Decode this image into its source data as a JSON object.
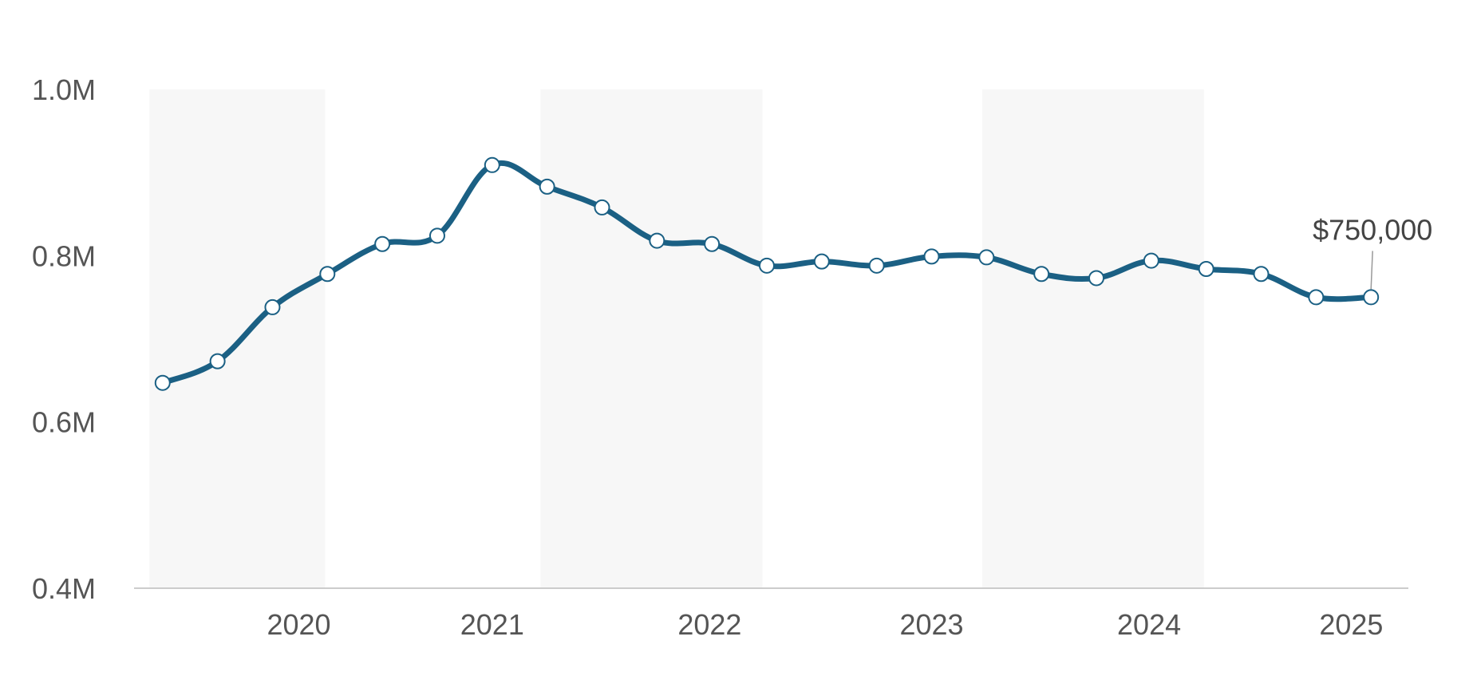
{
  "chart_data": {
    "type": "line",
    "title": "",
    "xlabel": "",
    "ylabel": "",
    "ylim": [
      400000,
      1000000
    ],
    "grid": false,
    "legend": "none",
    "y_ticks": [
      {
        "value": 400000,
        "label": "0.4M"
      },
      {
        "value": 600000,
        "label": "0.6M"
      },
      {
        "value": 800000,
        "label": "0.8M"
      },
      {
        "value": 1000000,
        "label": "1.0M"
      }
    ],
    "x_ticks": [
      {
        "value": 2020.2,
        "label": "2020"
      },
      {
        "value": 2021.08,
        "label": "2021"
      },
      {
        "value": 2022.07,
        "label": "2022"
      },
      {
        "value": 2023.08,
        "label": "2023"
      },
      {
        "value": 2024.07,
        "label": "2024"
      },
      {
        "value": 2024.99,
        "label": "2025"
      }
    ],
    "x_range": [
      2019.45,
      2025.25
    ],
    "shaded_bands": [
      {
        "from": 2019.52,
        "to": 2020.32
      },
      {
        "from": 2021.3,
        "to": 2022.31
      },
      {
        "from": 2023.31,
        "to": 2024.32
      }
    ],
    "series": [
      {
        "name": "",
        "color": "#1b6084",
        "x": [
          2019.58,
          2019.83,
          2020.08,
          2020.33,
          2020.58,
          2020.83,
          2021.08,
          2021.33,
          2021.58,
          2021.83,
          2022.08,
          2022.33,
          2022.58,
          2022.83,
          2023.08,
          2023.33,
          2023.58,
          2023.83,
          2024.08,
          2024.33,
          2024.58,
          2024.83,
          2025.08
        ],
        "values": [
          647000,
          673000,
          738000,
          778000,
          814000,
          824000,
          909000,
          883000,
          858000,
          818000,
          814000,
          788000,
          793000,
          788000,
          799000,
          798000,
          778000,
          773000,
          794000,
          784000,
          778000,
          750000,
          750000
        ]
      }
    ],
    "annotation": {
      "label": "$750,000",
      "x": 2025.08,
      "value": 750000
    }
  }
}
